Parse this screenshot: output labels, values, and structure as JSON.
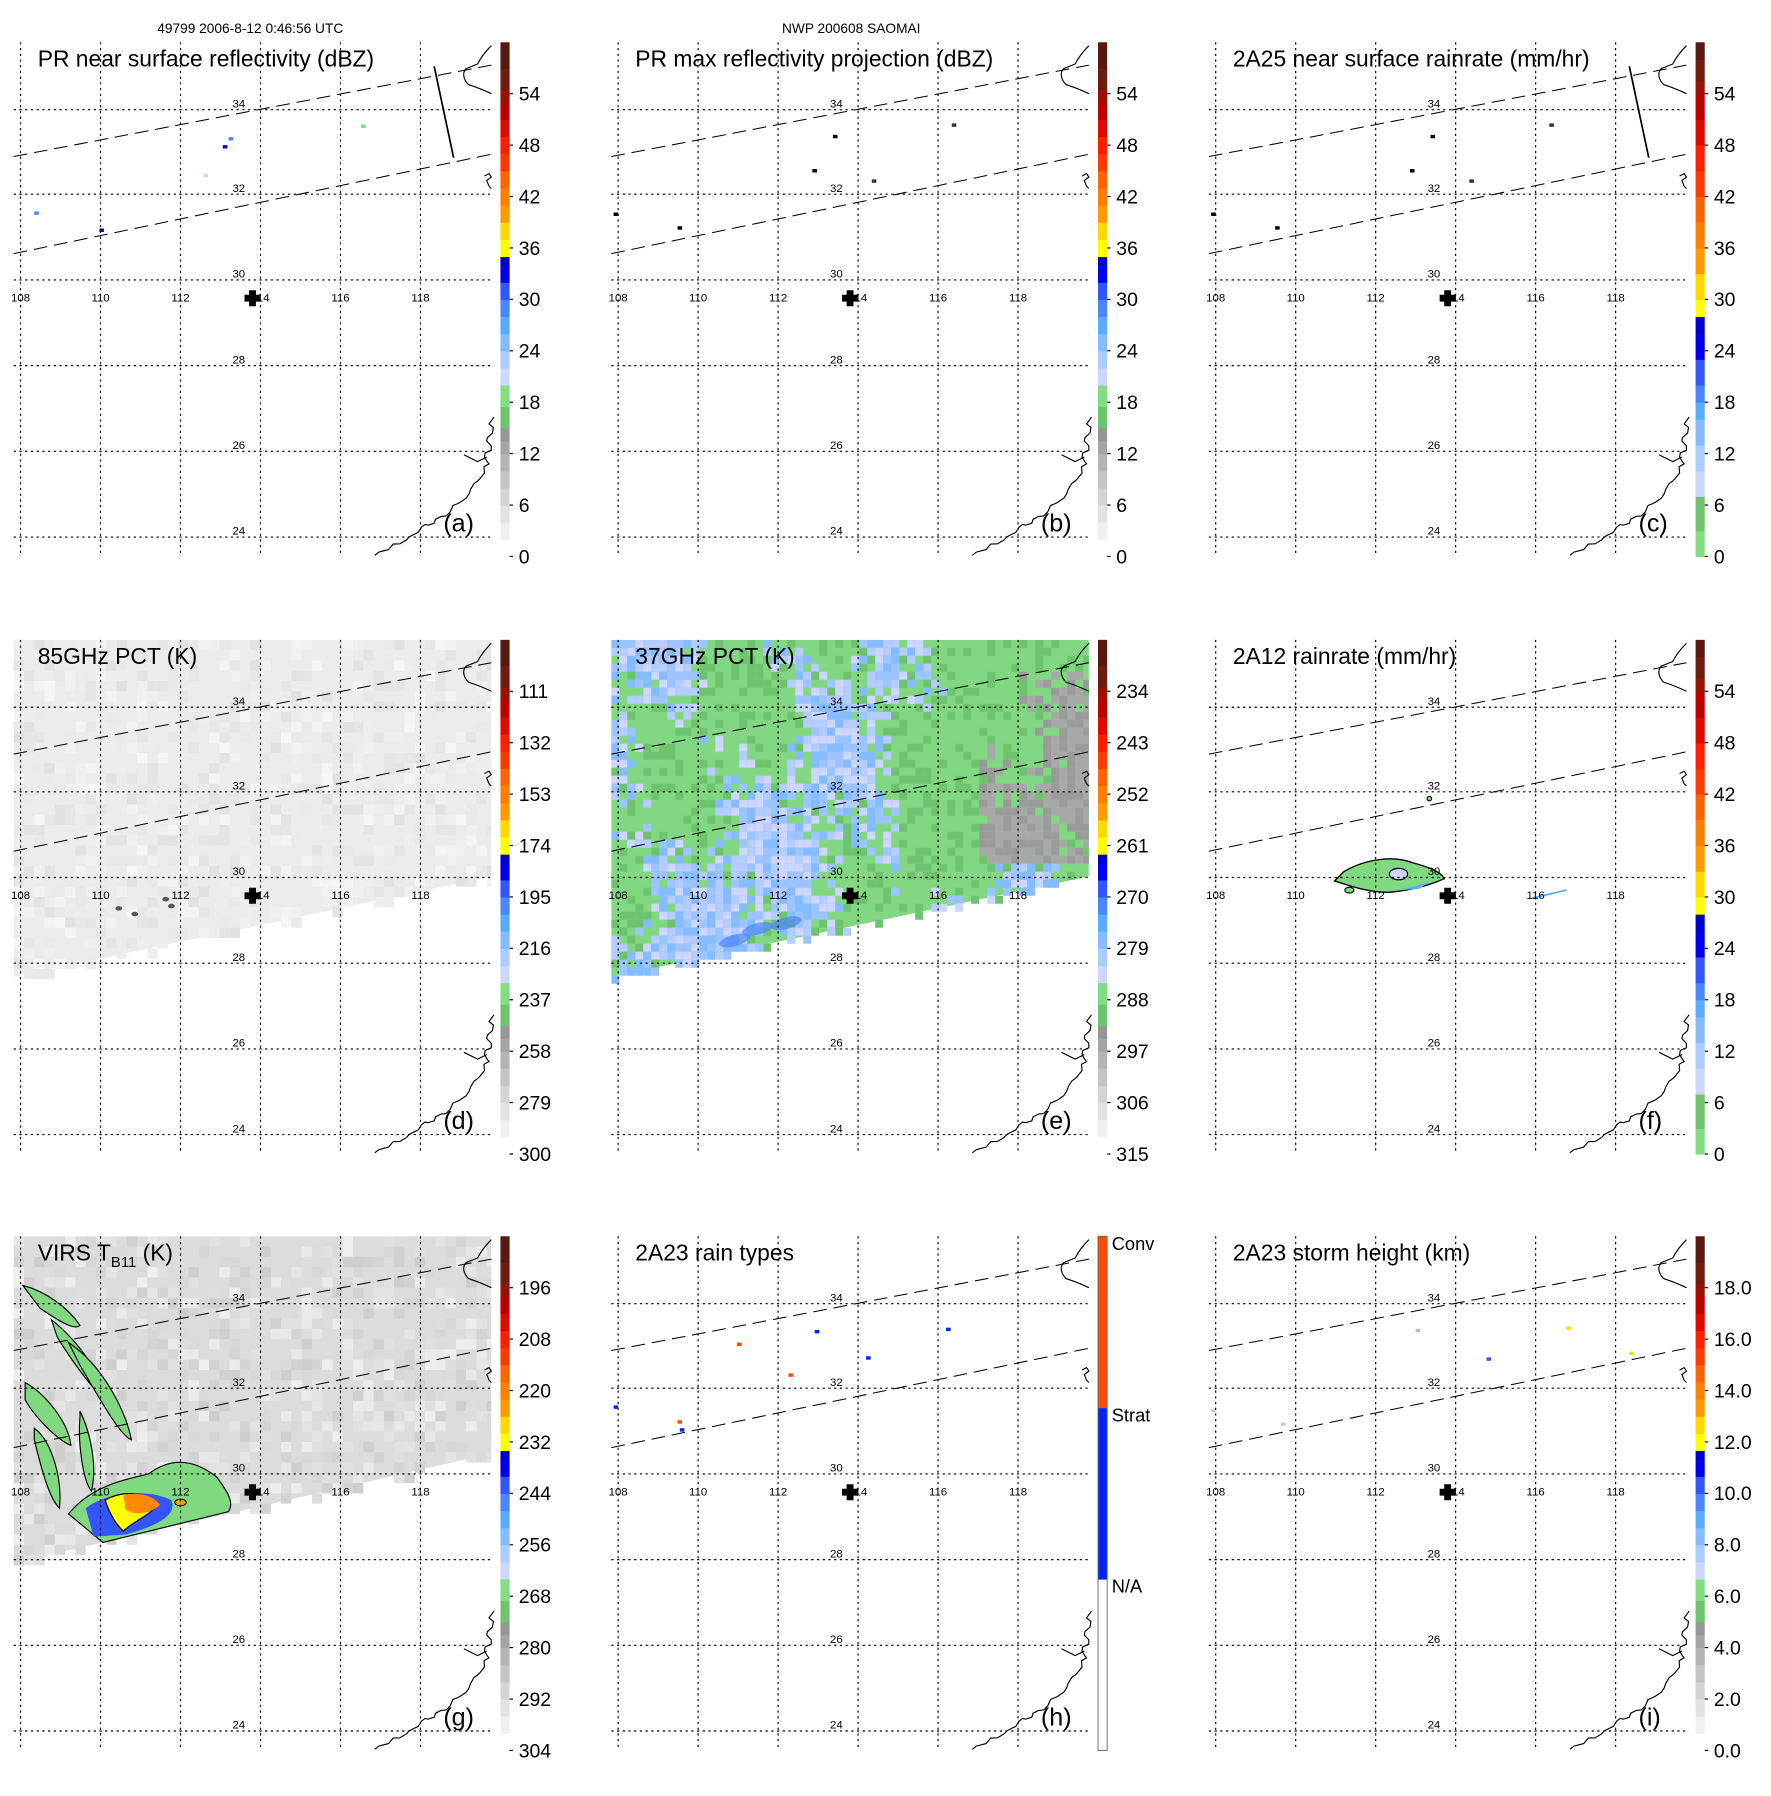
{
  "header": {
    "left": "49799 2006-8-12 0:46:56 UTC",
    "center": "NWP 200608 SAOMAI"
  },
  "axes": {
    "lon_labels": [
      "108",
      "110",
      "112",
      "114",
      "116",
      "118"
    ],
    "lat_labels": [
      "34",
      "32",
      "30",
      "28",
      "26",
      "24"
    ]
  },
  "palettes": {
    "A": [
      [
        0,
        "#ffffff"
      ],
      [
        2,
        "#f0f0f0"
      ],
      [
        4,
        "#e2e2e2"
      ],
      [
        6,
        "#d4d4d4"
      ],
      [
        8,
        "#c4c4c4"
      ],
      [
        10,
        "#b4b4b4"
      ],
      [
        12,
        "#a4a4a4"
      ],
      [
        13.5,
        "#969696"
      ],
      [
        15,
        "#6ec46e"
      ],
      [
        17.5,
        "#82dc82"
      ],
      [
        20,
        "#ccd6ff"
      ],
      [
        22,
        "#aaccff"
      ],
      [
        24,
        "#84bcff"
      ],
      [
        26,
        "#58acff"
      ],
      [
        28,
        "#4a86ff"
      ],
      [
        30,
        "#3355ff"
      ],
      [
        32,
        "#0000f0"
      ],
      [
        34,
        "#0000cc"
      ],
      [
        35,
        "#ffff00"
      ],
      [
        37,
        "#ffd800"
      ],
      [
        39,
        "#ff9a00"
      ],
      [
        41,
        "#ff8000"
      ],
      [
        43,
        "#ff6400"
      ],
      [
        45,
        "#ff3a00"
      ],
      [
        47,
        "#ff1e00"
      ],
      [
        49,
        "#dd0a00"
      ],
      [
        51,
        "#bb0000"
      ],
      [
        53,
        "#991100"
      ],
      [
        54.5,
        "#6e1c10"
      ],
      [
        57,
        "#581810"
      ],
      [
        60,
        "#581810"
      ]
    ],
    "C": [
      [
        0,
        "#82dc82"
      ],
      [
        3,
        "#6ec46e"
      ],
      [
        7,
        "#ccd6ff"
      ],
      [
        10,
        "#aaccff"
      ],
      [
        13,
        "#84bcff"
      ],
      [
        16,
        "#58acff"
      ],
      [
        18,
        "#4a86ff"
      ],
      [
        20,
        "#3355ff"
      ],
      [
        23,
        "#0000f0"
      ],
      [
        26,
        "#0000cc"
      ],
      [
        28,
        "#ffff00"
      ],
      [
        30,
        "#ffd800"
      ],
      [
        33,
        "#ff9a00"
      ],
      [
        36,
        "#ff8000"
      ],
      [
        39,
        "#ff6400"
      ],
      [
        42,
        "#ff3a00"
      ],
      [
        45,
        "#ff1e00"
      ],
      [
        48,
        "#dd0a00"
      ],
      [
        51,
        "#bb0000"
      ],
      [
        54,
        "#991100"
      ],
      [
        55.5,
        "#6e1c10"
      ],
      [
        58,
        "#581810"
      ],
      [
        60,
        "#581810"
      ]
    ],
    "H": [
      [
        0,
        "#ffffff"
      ],
      [
        20,
        "#0022ff"
      ],
      [
        40,
        "#ff4a00"
      ],
      [
        60,
        "#ff4a00"
      ]
    ]
  },
  "panels": [
    {
      "id": "a",
      "title": "PR near surface reflectivity (dBZ)",
      "letter": "(a)",
      "palette": "A",
      "cb_labels": [
        "0",
        "6",
        "12",
        "18",
        "24",
        "30",
        "36",
        "42",
        "48",
        "54"
      ],
      "field": "pr",
      "swath_edge": true
    },
    {
      "id": "b",
      "title": "PR max reflectivity projection (dBZ)",
      "letter": "(b)",
      "palette": "A",
      "cb_labels": [
        "0",
        "6",
        "12",
        "18",
        "24",
        "30",
        "36",
        "42",
        "48",
        "54"
      ],
      "field": "prmax",
      "swath_edge": false
    },
    {
      "id": "c",
      "title": "2A25 near surface rainrate (mm/hr)",
      "letter": "(c)",
      "palette": "C",
      "cb_labels": [
        "0",
        "6",
        "12",
        "18",
        "24",
        "30",
        "36",
        "42",
        "48",
        "54"
      ],
      "field": "prmax",
      "swath_edge": true
    },
    {
      "id": "d",
      "title": "85GHz PCT (K)",
      "letter": "(d)",
      "palette": "A",
      "cb_labels": [
        "300",
        "279",
        "258",
        "237",
        "216",
        "195",
        "174",
        "153",
        "132",
        "111"
      ],
      "field": "pct85",
      "swath_edge": false
    },
    {
      "id": "e",
      "title": "37GHz PCT (K)",
      "letter": "(e)",
      "palette": "A",
      "cb_labels": [
        "315",
        "306",
        "297",
        "288",
        "279",
        "270",
        "261",
        "252",
        "243",
        "234"
      ],
      "field": "pct37",
      "swath_edge": false
    },
    {
      "id": "f",
      "title": "2A12 rainrate (mm/hr)",
      "letter": "(f)",
      "palette": "C",
      "cb_labels": [
        "0",
        "6",
        "12",
        "18",
        "24",
        "30",
        "36",
        "42",
        "48",
        "54"
      ],
      "field": "tmi",
      "swath_edge": false
    },
    {
      "id": "g",
      "title": "VIRS T",
      "title_sub": "B11",
      "title_suffix": " (K)",
      "letter": "(g)",
      "palette": "A",
      "cb_labels": [
        "304",
        "292",
        "280",
        "268",
        "256",
        "244",
        "232",
        "220",
        "208",
        "196"
      ],
      "field": "virs",
      "swath_edge": false
    },
    {
      "id": "h",
      "title": "2A23 rain types",
      "letter": "(h)",
      "palette": "H",
      "cb_categories": [
        "N/A",
        "Strat",
        "Conv"
      ],
      "field": "types",
      "swath_edge": false
    },
    {
      "id": "i",
      "title": "2A23 storm height (km)",
      "letter": "(i)",
      "palette": "A",
      "cb_labels": [
        "0.0",
        "2.0",
        "4.0",
        "6.0",
        "8.0",
        "10.0",
        "12.0",
        "14.0",
        "16.0",
        "18.0"
      ],
      "field": "height",
      "swath_edge": false
    }
  ]
}
